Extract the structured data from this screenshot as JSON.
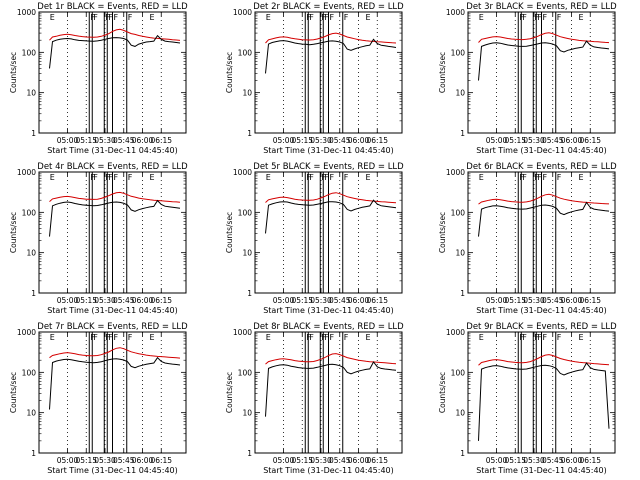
{
  "chart_data": {
    "type": "line",
    "y_scale": "log",
    "ylim": [
      1,
      1000
    ],
    "ylabel": "Counts/sec",
    "xlabel": "Start Time (31-Dec-11 04:45:40)",
    "x_ticks": [
      "05:00",
      "05:15",
      "05:30",
      "05:45",
      "06:00",
      "06:15"
    ],
    "y_ticks": [
      "1",
      "10",
      "100",
      "1000"
    ],
    "grid": "vertical dotted lines at x ticks",
    "series_colors": {
      "events": "#000000",
      "lld": "#d40000"
    },
    "markers": {
      "x": [
        4.75,
        5.29,
        5.33,
        5.49,
        5.53,
        5.6,
        5.79,
        6.08
      ],
      "labels": [
        "E",
        "F",
        "F",
        "F",
        "F",
        "F",
        "F",
        "E"
      ]
    },
    "panels": [
      {
        "title": "Det 1r BLACK = Events, RED = LLD",
        "x": [
          4.76,
          4.8,
          4.85,
          4.9,
          4.95,
          5.0,
          5.05,
          5.1,
          5.15,
          5.2,
          5.25,
          5.3,
          5.35,
          5.4,
          5.45,
          5.5,
          5.55,
          5.6,
          5.65,
          5.7,
          5.75,
          5.8,
          5.85,
          5.9,
          5.95,
          6.0,
          6.05,
          6.1,
          6.15,
          6.2,
          6.25,
          6.3,
          6.35,
          6.4,
          6.45,
          6.5
        ],
        "events": [
          40,
          185,
          200,
          210,
          218,
          220,
          215,
          205,
          198,
          195,
          192,
          190,
          188,
          192,
          200,
          210,
          220,
          230,
          232,
          228,
          220,
          200,
          150,
          140,
          160,
          170,
          180,
          185,
          190,
          260,
          210,
          190,
          185,
          180,
          175,
          170
        ],
        "lld": [
          200,
          240,
          250,
          265,
          275,
          280,
          272,
          262,
          252,
          245,
          240,
          238,
          236,
          240,
          250,
          268,
          290,
          330,
          360,
          372,
          350,
          320,
          292,
          278,
          262,
          250,
          240,
          232,
          226,
          222,
          218,
          214,
          210,
          206,
          202,
          198
        ]
      },
      {
        "title": "Det 2r BLACK = Events, RED = LLD",
        "x": [
          4.76,
          4.8,
          4.85,
          4.9,
          4.95,
          5.0,
          5.05,
          5.1,
          5.15,
          5.2,
          5.25,
          5.3,
          5.35,
          5.4,
          5.45,
          5.5,
          5.55,
          5.6,
          5.65,
          5.7,
          5.75,
          5.8,
          5.85,
          5.9,
          5.95,
          6.0,
          6.05,
          6.1,
          6.15,
          6.2,
          6.25,
          6.3,
          6.35,
          6.4,
          6.45,
          6.5
        ],
        "events": [
          30,
          160,
          175,
          185,
          192,
          195,
          190,
          180,
          170,
          165,
          160,
          158,
          155,
          158,
          165,
          172,
          180,
          190,
          192,
          188,
          180,
          165,
          120,
          112,
          122,
          130,
          138,
          145,
          150,
          210,
          165,
          150,
          145,
          140,
          136,
          132
        ],
        "lld": [
          170,
          205,
          215,
          228,
          238,
          242,
          236,
          226,
          216,
          210,
          205,
          203,
          202,
          205,
          214,
          228,
          245,
          270,
          292,
          300,
          285,
          262,
          240,
          228,
          216,
          207,
          200,
          194,
          190,
          187,
          184,
          181,
          178,
          175,
          172,
          170
        ]
      },
      {
        "title": "Det 3r BLACK = Events, RED = LLD",
        "x": [
          4.76,
          4.8,
          4.85,
          4.9,
          4.95,
          5.0,
          5.05,
          5.1,
          5.15,
          5.2,
          5.25,
          5.3,
          5.35,
          5.4,
          5.45,
          5.5,
          5.55,
          5.6,
          5.65,
          5.7,
          5.75,
          5.8,
          5.85,
          5.9,
          5.95,
          6.0,
          6.05,
          6.1,
          6.15,
          6.2,
          6.25,
          6.3,
          6.35,
          6.4,
          6.45,
          6.5
        ],
        "events": [
          20,
          140,
          152,
          162,
          170,
          172,
          168,
          160,
          152,
          148,
          144,
          142,
          140,
          142,
          148,
          155,
          162,
          170,
          172,
          168,
          160,
          145,
          110,
          102,
          112,
          118,
          125,
          130,
          135,
          190,
          150,
          136,
          132,
          128,
          125,
          122
        ],
        "lld": [
          175,
          210,
          220,
          232,
          242,
          246,
          240,
          230,
          220,
          214,
          210,
          208,
          207,
          210,
          218,
          232,
          250,
          275,
          296,
          305,
          290,
          266,
          244,
          232,
          220,
          211,
          204,
          198,
          194,
          191,
          188,
          185,
          182,
          179,
          176,
          174
        ]
      },
      {
        "title": "Det 4r BLACK = Events, RED = LLD",
        "x": [
          4.76,
          4.8,
          4.85,
          4.9,
          4.95,
          5.0,
          5.05,
          5.1,
          5.15,
          5.2,
          5.25,
          5.3,
          5.35,
          5.4,
          5.45,
          5.5,
          5.55,
          5.6,
          5.65,
          5.7,
          5.75,
          5.8,
          5.85,
          5.9,
          5.95,
          6.0,
          6.05,
          6.1,
          6.15,
          6.2,
          6.25,
          6.3,
          6.35,
          6.4,
          6.45,
          6.5
        ],
        "events": [
          25,
          145,
          158,
          168,
          176,
          180,
          175,
          166,
          158,
          153,
          150,
          148,
          146,
          148,
          154,
          162,
          170,
          178,
          180,
          176,
          168,
          152,
          115,
          106,
          116,
          124,
          130,
          136,
          140,
          195,
          156,
          142,
          138,
          134,
          130,
          126
        ],
        "lld": [
          185,
          215,
          225,
          236,
          245,
          248,
          242,
          232,
          222,
          216,
          212,
          210,
          209,
          212,
          222,
          238,
          258,
          284,
          305,
          312,
          296,
          272,
          250,
          238,
          226,
          217,
          210,
          204,
          200,
          196,
          193,
          190,
          187,
          184,
          181,
          178
        ]
      },
      {
        "title": "Det 5r BLACK = Events, RED = LLD",
        "x": [
          4.76,
          4.8,
          4.85,
          4.9,
          4.95,
          5.0,
          5.05,
          5.1,
          5.15,
          5.2,
          5.25,
          5.3,
          5.35,
          5.4,
          5.45,
          5.5,
          5.55,
          5.6,
          5.65,
          5.7,
          5.75,
          5.8,
          5.85,
          5.9,
          5.95,
          6.0,
          6.05,
          6.1,
          6.15,
          6.2,
          6.25,
          6.3,
          6.35,
          6.4,
          6.45,
          6.5
        ],
        "events": [
          30,
          150,
          162,
          172,
          180,
          184,
          180,
          170,
          162,
          157,
          154,
          152,
          150,
          152,
          158,
          166,
          174,
          182,
          184,
          180,
          172,
          156,
          118,
          108,
          118,
          126,
          133,
          139,
          144,
          200,
          160,
          146,
          142,
          138,
          134,
          130
        ],
        "lld": [
          175,
          205,
          215,
          226,
          235,
          238,
          232,
          222,
          212,
          206,
          202,
          200,
          199,
          202,
          212,
          228,
          248,
          275,
          298,
          306,
          290,
          266,
          244,
          232,
          220,
          211,
          204,
          198,
          194,
          190,
          187,
          184,
          181,
          178,
          175,
          172
        ]
      },
      {
        "title": "Det 6r BLACK = Events, RED = LLD",
        "x": [
          4.76,
          4.8,
          4.85,
          4.9,
          4.95,
          5.0,
          5.05,
          5.1,
          5.15,
          5.2,
          5.25,
          5.3,
          5.35,
          5.4,
          5.45,
          5.5,
          5.55,
          5.6,
          5.65,
          5.7,
          5.75,
          5.8,
          5.85,
          5.9,
          5.95,
          6.0,
          6.05,
          6.1,
          6.15,
          6.2,
          6.25,
          6.3,
          6.35,
          6.4,
          6.45,
          6.5
        ],
        "events": [
          25,
          120,
          130,
          138,
          144,
          146,
          142,
          136,
          130,
          126,
          123,
          121,
          120,
          122,
          128,
          135,
          142,
          150,
          152,
          148,
          140,
          126,
          95,
          88,
          96,
          103,
          109,
          114,
          118,
          175,
          132,
          120,
          116,
          113,
          110,
          107
        ],
        "lld": [
          160,
          180,
          190,
          200,
          208,
          212,
          206,
          198,
          190,
          185,
          181,
          179,
          178,
          181,
          190,
          205,
          224,
          250,
          272,
          280,
          266,
          244,
          224,
          212,
          202,
          194,
          188,
          183,
          179,
          176,
          173,
          170,
          168,
          166,
          164,
          162
        ]
      },
      {
        "title": "Det 7r BLACK = Events, RED = LLD",
        "x": [
          4.76,
          4.8,
          4.85,
          4.9,
          4.95,
          5.0,
          5.05,
          5.1,
          5.15,
          5.2,
          5.25,
          5.3,
          5.35,
          5.4,
          5.45,
          5.5,
          5.55,
          5.6,
          5.65,
          5.7,
          5.75,
          5.8,
          5.85,
          5.9,
          5.95,
          6.0,
          6.05,
          6.1,
          6.15,
          6.2,
          6.25,
          6.3,
          6.35,
          6.4,
          6.45,
          6.5
        ],
        "events": [
          12,
          175,
          190,
          200,
          208,
          212,
          206,
          196,
          188,
          182,
          178,
          175,
          173,
          176,
          184,
          194,
          204,
          214,
          216,
          212,
          202,
          184,
          140,
          130,
          142,
          150,
          158,
          165,
          170,
          230,
          186,
          170,
          165,
          160,
          156,
          152
        ],
        "lld": [
          230,
          262,
          275,
          290,
          302,
          308,
          300,
          288,
          276,
          268,
          262,
          259,
          258,
          262,
          274,
          294,
          320,
          360,
          395,
          408,
          386,
          352,
          322,
          305,
          290,
          278,
          268,
          260,
          254,
          249,
          245,
          241,
          237,
          233,
          229,
          226
        ]
      },
      {
        "title": "Det 8r BLACK = Events, RED = LLD",
        "x": [
          4.76,
          4.8,
          4.85,
          4.9,
          4.95,
          5.0,
          5.05,
          5.1,
          5.15,
          5.2,
          5.25,
          5.3,
          5.35,
          5.4,
          5.45,
          5.5,
          5.55,
          5.6,
          5.65,
          5.7,
          5.75,
          5.8,
          5.85,
          5.9,
          5.95,
          6.0,
          6.05,
          6.1,
          6.15,
          6.2,
          6.25,
          6.3,
          6.35,
          6.4,
          6.45,
          6.5
        ],
        "events": [
          8,
          125,
          136,
          145,
          152,
          155,
          150,
          142,
          136,
          131,
          128,
          126,
          125,
          127,
          133,
          140,
          148,
          156,
          158,
          154,
          146,
          132,
          100,
          92,
          100,
          107,
          113,
          118,
          122,
          180,
          137,
          125,
          121,
          118,
          115,
          112
        ],
        "lld": [
          160,
          185,
          195,
          206,
          214,
          218,
          212,
          204,
          195,
          190,
          186,
          184,
          183,
          186,
          196,
          212,
          232,
          260,
          284,
          292,
          276,
          252,
          232,
          220,
          209,
          200,
          194,
          188,
          184,
          181,
          178,
          175,
          172,
          169,
          166,
          164
        ]
      },
      {
        "title": "Det 9r BLACK = Events, RED = LLD",
        "x": [
          4.76,
          4.8,
          4.85,
          4.9,
          4.95,
          5.0,
          5.05,
          5.1,
          5.15,
          5.2,
          5.25,
          5.3,
          5.35,
          5.4,
          5.45,
          5.5,
          5.55,
          5.6,
          5.65,
          5.7,
          5.75,
          5.8,
          5.85,
          5.9,
          5.95,
          6.0,
          6.05,
          6.1,
          6.15,
          6.2,
          6.25,
          6.3,
          6.35,
          6.4,
          6.45,
          6.5
        ],
        "events": [
          2,
          120,
          130,
          138,
          144,
          147,
          142,
          135,
          129,
          125,
          122,
          120,
          119,
          121,
          127,
          134,
          141,
          148,
          150,
          146,
          138,
          124,
          94,
          86,
          94,
          101,
          107,
          112,
          116,
          170,
          130,
          118,
          114,
          111,
          108,
          4
        ],
        "lld": [
          150,
          175,
          185,
          195,
          203,
          207,
          201,
          193,
          185,
          180,
          176,
          174,
          173,
          176,
          185,
          200,
          220,
          246,
          268,
          276,
          262,
          240,
          220,
          208,
          198,
          190,
          184,
          178,
          174,
          171,
          168,
          165,
          162,
          159,
          156,
          154
        ]
      }
    ]
  }
}
